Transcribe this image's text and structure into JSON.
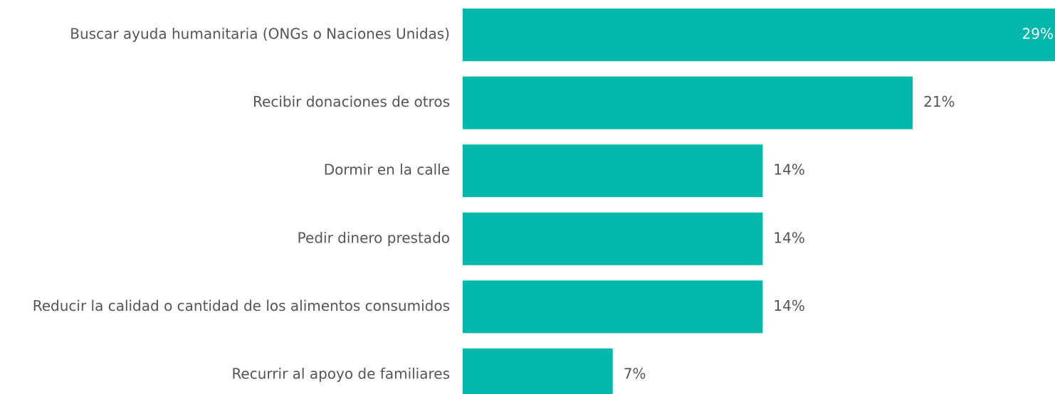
{
  "chart_data": {
    "type": "bar",
    "orientation": "horizontal",
    "categories": [
      "Buscar ayuda humanitaria (ONGs o Naciones Unidas)",
      "Recibir donaciones de otros",
      "Dormir en la calle",
      "Pedir dinero prestado",
      "Reducir la calidad o cantidad de los alimentos consumidos",
      "Recurrir al apoyo de familiares"
    ],
    "values": [
      29,
      21,
      14,
      14,
      14,
      7
    ],
    "value_labels": [
      "29%",
      "21%",
      "14%",
      "14%",
      "14%",
      "7%"
    ],
    "color": "#01b8aa"
  }
}
